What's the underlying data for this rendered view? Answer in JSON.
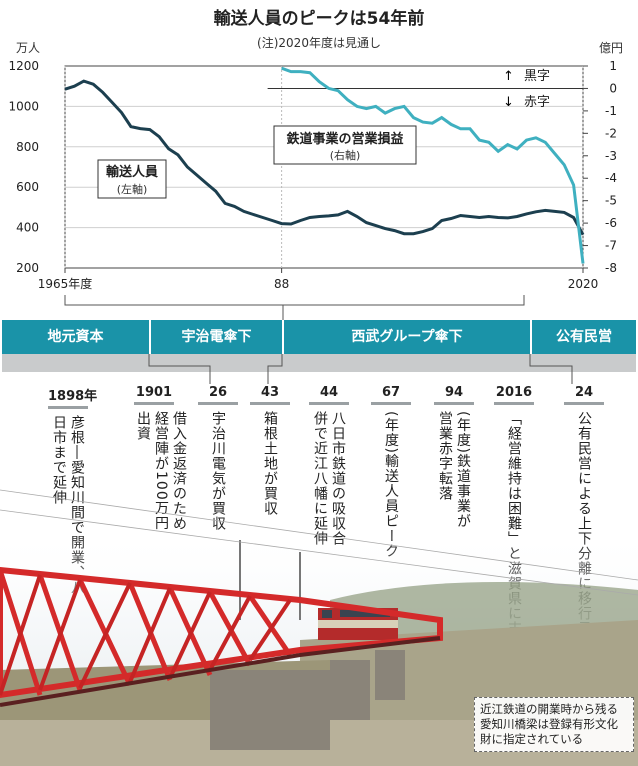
{
  "chart_data": {
    "type": "line",
    "title": "輸送人員のピークは54年前",
    "note": "(注)2020年度は見通し",
    "left_axis": {
      "unit": "万人",
      "ticks": [
        1200,
        1000,
        800,
        600,
        400,
        200
      ],
      "ylim": [
        200,
        1200
      ]
    },
    "right_axis": {
      "unit": "億円",
      "ticks": [
        1,
        0,
        -1,
        -2,
        -3,
        -4,
        -5,
        -6,
        -7,
        -8
      ],
      "ylim": [
        -8,
        1
      ]
    },
    "x_ticks": [
      {
        "year": 1965,
        "label": "1965年度"
      },
      {
        "year": 1988,
        "label": "88"
      },
      {
        "year": 2020,
        "label": "2020"
      }
    ],
    "xlim": [
      1965,
      2020
    ],
    "profit_labels": {
      "black": "黒字",
      "red": "赤字"
    },
    "series": [
      {
        "name": "輸送人員",
        "axis_label": "(左軸)",
        "color": "#1c3f4f",
        "points": [
          [
            1965,
            1085
          ],
          [
            1966,
            1100
          ],
          [
            1967,
            1125
          ],
          [
            1968,
            1110
          ],
          [
            1969,
            1070
          ],
          [
            1970,
            1020
          ],
          [
            1971,
            970
          ],
          [
            1972,
            900
          ],
          [
            1973,
            890
          ],
          [
            1974,
            885
          ],
          [
            1975,
            850
          ],
          [
            1976,
            790
          ],
          [
            1977,
            760
          ],
          [
            1978,
            700
          ],
          [
            1979,
            660
          ],
          [
            1980,
            620
          ],
          [
            1981,
            580
          ],
          [
            1982,
            520
          ],
          [
            1983,
            505
          ],
          [
            1984,
            480
          ],
          [
            1985,
            465
          ],
          [
            1986,
            450
          ],
          [
            1987,
            435
          ],
          [
            1988,
            420
          ],
          [
            1989,
            418
          ],
          [
            1990,
            435
          ],
          [
            1991,
            450
          ],
          [
            1992,
            455
          ],
          [
            1993,
            458
          ],
          [
            1994,
            463
          ],
          [
            1995,
            480
          ],
          [
            1996,
            455
          ],
          [
            1997,
            425
          ],
          [
            1998,
            410
          ],
          [
            1999,
            395
          ],
          [
            2000,
            385
          ],
          [
            2001,
            370
          ],
          [
            2002,
            370
          ],
          [
            2003,
            380
          ],
          [
            2004,
            395
          ],
          [
            2005,
            435
          ],
          [
            2006,
            445
          ],
          [
            2007,
            460
          ],
          [
            2008,
            455
          ],
          [
            2009,
            450
          ],
          [
            2010,
            455
          ],
          [
            2011,
            450
          ],
          [
            2012,
            448
          ],
          [
            2013,
            455
          ],
          [
            2014,
            468
          ],
          [
            2015,
            478
          ],
          [
            2016,
            485
          ],
          [
            2017,
            480
          ],
          [
            2018,
            475
          ],
          [
            2019,
            450
          ],
          [
            2020,
            365
          ]
        ]
      },
      {
        "name": "鉄道事業の営業損益",
        "axis_label": "(右軸)",
        "color": "#3fb0c0",
        "points": [
          [
            1988,
            0.9
          ],
          [
            1989,
            0.75
          ],
          [
            1990,
            0.75
          ],
          [
            1991,
            0.7
          ],
          [
            1992,
            0.3
          ],
          [
            1993,
            0
          ],
          [
            1994,
            -0.1
          ],
          [
            1995,
            -0.5
          ],
          [
            1996,
            -0.8
          ],
          [
            1997,
            -0.9
          ],
          [
            1998,
            -0.8
          ],
          [
            1999,
            -1.1
          ],
          [
            2000,
            -0.9
          ],
          [
            2001,
            -0.8
          ],
          [
            2002,
            -1.3
          ],
          [
            2003,
            -1.5
          ],
          [
            2004,
            -1.55
          ],
          [
            2005,
            -1.3
          ],
          [
            2006,
            -1.6
          ],
          [
            2007,
            -1.8
          ],
          [
            2008,
            -1.8
          ],
          [
            2009,
            -2.3
          ],
          [
            2010,
            -2.4
          ],
          [
            2011,
            -2.8
          ],
          [
            2012,
            -2.5
          ],
          [
            2013,
            -2.7
          ],
          [
            2014,
            -2.3
          ],
          [
            2015,
            -2.2
          ],
          [
            2016,
            -2.4
          ],
          [
            2017,
            -2.9
          ],
          [
            2018,
            -3.4
          ],
          [
            2019,
            -4.3
          ],
          [
            2020,
            -7.8
          ]
        ]
      }
    ],
    "grid": true
  },
  "eras": [
    {
      "label": "地元資本"
    },
    {
      "label": "宇治電傘下"
    },
    {
      "label": "西武グループ傘下"
    },
    {
      "label": "公有民営"
    }
  ],
  "events": [
    {
      "year": "1898年",
      "text": "彦根―愛知川間で開業、八日市まで延伸"
    },
    {
      "year": "1901",
      "text": "借入金返済のため経営陣が100万円出資"
    },
    {
      "year": "26",
      "text": "宇治川電気が買収"
    },
    {
      "year": "43",
      "text": "箱根土地が買収"
    },
    {
      "year": "44",
      "text": "八日市鉄道の吸収合併で近江八幡に延伸"
    },
    {
      "year": "67",
      "text": "(年度)輸送人員ピーク"
    },
    {
      "year": "94",
      "text": "(年度)鉄道事業が営業赤字転落"
    },
    {
      "year": "2016",
      "text": "「経営維持は困難」と滋賀県に支援要望"
    },
    {
      "year": "24",
      "text": "公有民営による上下分離に移行予定"
    }
  ],
  "caption": "近江鉄道の開業時から残る愛知川橋梁は登録有形文化財に指定されている"
}
